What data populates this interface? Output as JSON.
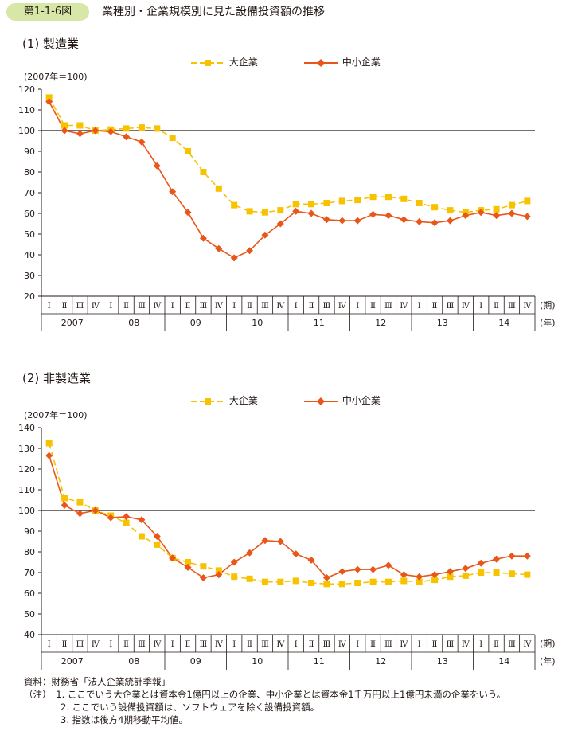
{
  "figure_label": "第1-1-6図",
  "figure_title": "業種別・企業規模別に見た設備投資額の推移",
  "colors": {
    "large": "#f7c200",
    "small": "#e9561a",
    "label_bg": "#d6e7a7",
    "axis": "#231815"
  },
  "quarter_labels": [
    "Ⅰ",
    "Ⅱ",
    "Ⅲ",
    "Ⅳ"
  ],
  "period_unit": "(期)",
  "year_unit": "(年)",
  "chart_data": [
    {
      "type": "line",
      "title": "(1) 製造業",
      "unit_label": "(2007年＝100)",
      "ylim": [
        20,
        120
      ],
      "yticks": [
        20,
        30,
        40,
        50,
        60,
        70,
        80,
        90,
        100,
        110,
        120
      ],
      "reference_line": 100,
      "years": [
        "2007",
        "08",
        "09",
        "10",
        "11",
        "12",
        "13",
        "14"
      ],
      "series": [
        {
          "name": "大企業",
          "values": [
            116,
            102.5,
            102.5,
            100,
            100.5,
            101,
            101.5,
            101,
            96.5,
            90,
            80,
            72,
            64,
            61,
            60.5,
            61.5,
            64.5,
            64.5,
            65,
            66,
            66.5,
            68,
            68,
            67,
            65,
            63,
            61.5,
            60.5,
            61.5,
            62,
            64,
            66
          ]
        },
        {
          "name": "中小企業",
          "values": [
            114,
            100,
            98.5,
            100,
            99.5,
            97,
            94.5,
            83,
            70.5,
            60.5,
            48,
            43,
            38.5,
            42,
            49.5,
            55,
            61,
            60,
            57,
            56.5,
            56.5,
            59.5,
            59,
            57,
            56,
            55.5,
            56.5,
            59,
            60.5,
            59,
            60,
            58.5
          ]
        }
      ]
    },
    {
      "type": "line",
      "title": "(2) 非製造業",
      "unit_label": "(2007年＝100)",
      "ylim": [
        40,
        140
      ],
      "yticks": [
        40,
        50,
        60,
        70,
        80,
        90,
        100,
        110,
        120,
        130,
        140
      ],
      "reference_line": 100,
      "years": [
        "2007",
        "08",
        "09",
        "10",
        "11",
        "12",
        "13",
        "14"
      ],
      "series": [
        {
          "name": "大企業",
          "values": [
            132.5,
            106,
            104,
            100,
            97.5,
            94,
            87.5,
            83.5,
            77,
            75,
            73,
            71,
            68,
            67,
            65.5,
            65.5,
            66,
            65,
            64.5,
            64.5,
            65,
            65.5,
            65.5,
            66,
            65.5,
            66.5,
            68,
            68.5,
            70,
            70,
            69.5,
            69
          ]
        },
        {
          "name": "中小企業",
          "values": [
            126.5,
            102.5,
            98.5,
            100,
            96.5,
            97,
            95.5,
            87.5,
            77,
            72.5,
            67.5,
            69,
            75,
            79.5,
            85.5,
            85,
            79,
            76,
            67.5,
            70.5,
            71.5,
            71.5,
            73.5,
            69,
            68,
            69,
            70.5,
            72,
            74.5,
            76.5,
            78,
            78
          ]
        }
      ]
    }
  ],
  "notes": [
    "資料：財務省「法人企業統計季報」",
    "（注）　1. ここでいう大企業とは資本金1億円以上の企業、中小企業とは資本金1千万円以上1億円未満の企業をいう。",
    "　　　　2. ここでいう設備投資額は、ソフトウェアを除く設備投資額。",
    "　　　　3. 指数は後方4期移動平均値。"
  ]
}
